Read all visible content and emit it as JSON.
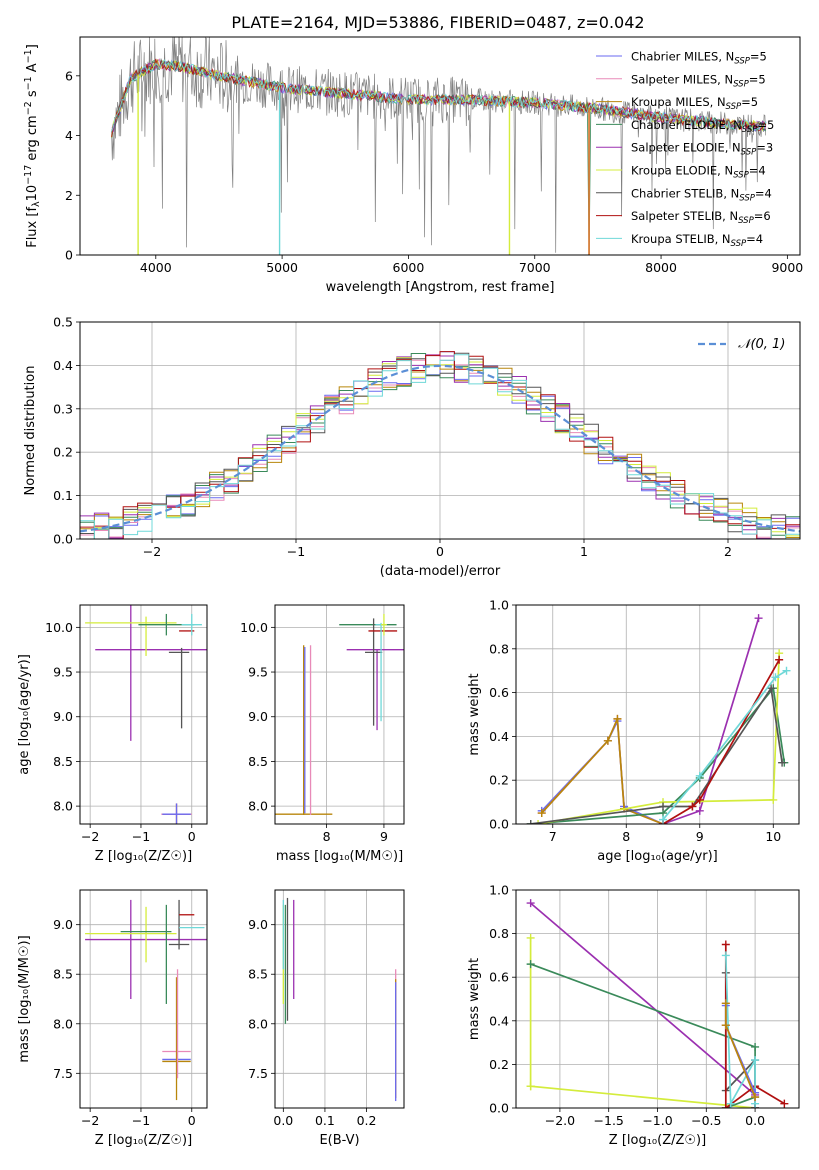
{
  "figure": {
    "title": "PLATE=2164, MJD=53886, FIBERID=0487, z=0.042"
  },
  "series": [
    {
      "name": "Chabrier MILES",
      "nssp": "5",
      "color": "#6a6af0"
    },
    {
      "name": "Salpeter MILES",
      "nssp": "5",
      "color": "#e88ab8"
    },
    {
      "name": "Kroupa MILES",
      "nssp": "5",
      "color": "#b8860b"
    },
    {
      "name": "Chabrier ELODIE",
      "nssp": "5",
      "color": "#3a8a5a"
    },
    {
      "name": "Salpeter ELODIE",
      "nssp": "3",
      "color": "#9b30b0"
    },
    {
      "name": "Kroupa ELODIE",
      "nssp": "4",
      "color": "#d4ec3c"
    },
    {
      "name": "Chabrier STELIB",
      "nssp": "4",
      "color": "#555555"
    },
    {
      "name": "Salpeter STELIB",
      "nssp": "6",
      "color": "#b01010"
    },
    {
      "name": "Kroupa STELIB",
      "nssp": "4",
      "color": "#6fd8d8"
    }
  ],
  "legend_ssp_prefix": "N",
  "legend_ssp_sub": "SSP",
  "colors": {
    "data": "#808080",
    "gaussian": "#5b8fd6",
    "orange": "#d97b3a",
    "grid": "#b0b0b0"
  },
  "chart_data": [
    {
      "id": "spectrum",
      "type": "line",
      "xlabel": "wavelength [Angstrom, rest frame]",
      "ylabel_parts": [
        "Flux [f",
        "λ",
        "10",
        "−17",
        " erg cm",
        "−2",
        " s",
        "−1",
        " A",
        "−1",
        "]"
      ],
      "xlim": [
        3400,
        9100
      ],
      "ylim": [
        0,
        7.3
      ],
      "xticks": [
        4000,
        5000,
        6000,
        7000,
        8000,
        9000
      ],
      "yticks": [
        0,
        2,
        4,
        6
      ],
      "continuum": {
        "x": [
          3650,
          3800,
          4000,
          4200,
          4500,
          5000,
          5500,
          6000,
          6500,
          7000,
          7500,
          8000,
          8500,
          8830
        ],
        "y": [
          4.1,
          5.9,
          6.4,
          6.3,
          6.0,
          5.6,
          5.4,
          5.2,
          5.2,
          5.1,
          4.9,
          4.6,
          4.4,
          4.3
        ]
      },
      "model_drops_x": [
        3860,
        4980,
        6800,
        7430
      ],
      "grid": false
    },
    {
      "id": "residuals",
      "type": "histogram",
      "xlabel": "(data-model)/error",
      "ylabel": "Normed distribution",
      "xlim": [
        -2.5,
        2.5
      ],
      "ylim": [
        0,
        0.5
      ],
      "xticks": [
        -2,
        -1,
        0,
        1,
        2
      ],
      "yticks": [
        0.0,
        0.1,
        0.2,
        0.3,
        0.4,
        0.5
      ],
      "bin_width": 0.1,
      "reference_label": "𝒩(0, 1)",
      "grid": true
    },
    {
      "id": "age-vs-Z",
      "type": "scatter",
      "xlabel": "Z [log₁₀(Z/Z☉)]",
      "ylabel": "age  [log₁₀(age/yr)]",
      "xlim": [
        -2.2,
        0.3
      ],
      "ylim": [
        7.8,
        10.25
      ],
      "xticks": [
        -2,
        -1,
        0
      ],
      "yticks": [
        8.0,
        8.5,
        9.0,
        9.5,
        10.0
      ],
      "grid": true,
      "points": [
        {
          "s": 2,
          "x": -0.3,
          "y": 7.91,
          "xerr": 0.28,
          "yerr": 0.12
        },
        {
          "s": 1,
          "x": -0.3,
          "y": 7.91,
          "xerr": 0.3,
          "yerr": 0.12
        },
        {
          "s": 0,
          "x": -0.3,
          "y": 7.91,
          "xerr": 0.28,
          "yerr": 0.12
        },
        {
          "s": 4,
          "x": -0.6,
          "y": 9.75,
          "xerr": 1.3,
          "yerr": 0.0
        },
        {
          "s": 4,
          "x": -1.2,
          "y": 9.5,
          "xerr": 0.0,
          "yerr": 0.77
        },
        {
          "s": 5,
          "x": -1.2,
          "y": 10.05,
          "xerr": 0.9,
          "yerr": 0.0
        },
        {
          "s": 5,
          "x": -0.9,
          "y": 9.9,
          "xerr": 0.0,
          "yerr": 0.22
        },
        {
          "s": 3,
          "x": -0.5,
          "y": 10.03,
          "xerr": 0.55,
          "yerr": 0.12
        },
        {
          "s": 6,
          "x": -0.25,
          "y": 9.72,
          "xerr": 0.2,
          "yerr": 0.0
        },
        {
          "s": 6,
          "x": -0.2,
          "y": 9.32,
          "xerr": 0.0,
          "yerr": 0.45
        },
        {
          "s": 7,
          "x": -0.1,
          "y": 9.96,
          "xerr": 0.15,
          "yerr": 0.0
        },
        {
          "s": 8,
          "x": 0.0,
          "y": 10.03,
          "xerr": 0.2,
          "yerr": 0.12
        }
      ]
    },
    {
      "id": "age-vs-mass",
      "type": "scatter",
      "xlabel": "mass [log₁₀(M/M☉)]",
      "ylabel": "",
      "xlim": [
        7.1,
        9.35
      ],
      "ylim": [
        7.8,
        10.25
      ],
      "xticks": [
        8,
        9
      ],
      "yticks": [
        8.0,
        8.5,
        9.0,
        9.5,
        10.0
      ],
      "grid": true,
      "points": [
        {
          "s": 2,
          "x": 7.6,
          "y": 7.91,
          "xerr": 0.5,
          "yerr": 0.0
        },
        {
          "s": 2,
          "x": 7.6,
          "y": 8.85,
          "xerr": 0.0,
          "yerr": 0.95
        },
        {
          "s": 1,
          "x": 7.72,
          "y": 8.85,
          "xerr": 0.0,
          "yerr": 0.95
        },
        {
          "s": 0,
          "x": 7.62,
          "y": 8.85,
          "xerr": 0.0,
          "yerr": 0.93
        },
        {
          "s": 4,
          "x": 8.85,
          "y": 9.75,
          "xerr": 0.5,
          "yerr": 0.0
        },
        {
          "s": 4,
          "x": 8.88,
          "y": 9.3,
          "xerr": 0.0,
          "yerr": 0.45
        },
        {
          "s": 3,
          "x": 8.72,
          "y": 10.03,
          "xerr": 0.5,
          "yerr": 0.0
        },
        {
          "s": 6,
          "x": 8.82,
          "y": 9.72,
          "xerr": 0.15,
          "yerr": 0.0
        },
        {
          "s": 6,
          "x": 8.82,
          "y": 9.5,
          "xerr": 0.0,
          "yerr": 0.6
        },
        {
          "s": 7,
          "x": 8.98,
          "y": 9.96,
          "xerr": 0.25,
          "yerr": 0.0
        },
        {
          "s": 8,
          "x": 8.95,
          "y": 10.03,
          "xerr": 0.1,
          "yerr": 0.0
        },
        {
          "s": 8,
          "x": 8.95,
          "y": 9.5,
          "xerr": 0.0,
          "yerr": 0.55
        },
        {
          "s": 5,
          "x": 9.0,
          "y": 10.03,
          "xerr": 0.05,
          "yerr": 0.12
        }
      ]
    },
    {
      "id": "weight-vs-age",
      "type": "line",
      "xlabel": "age  [log₁₀(age/yr)]",
      "ylabel": "mass weight",
      "xlim": [
        6.5,
        10.35
      ],
      "ylim": [
        0,
        1.0
      ],
      "xticks": [
        7,
        8,
        9,
        10
      ],
      "yticks": [
        0.0,
        0.2,
        0.4,
        0.6,
        0.8,
        1.0
      ],
      "grid": true,
      "series": [
        {
          "s": 0,
          "x": [
            6.85,
            7.75,
            7.88,
            7.97,
            8.5
          ],
          "y": [
            0.06,
            0.38,
            0.47,
            0.08,
            0.0
          ]
        },
        {
          "s": 1,
          "x": [
            6.85,
            7.75,
            7.88,
            7.97,
            8.5
          ],
          "y": [
            0.05,
            0.38,
            0.48,
            0.07,
            0.0
          ]
        },
        {
          "s": 2,
          "x": [
            6.85,
            7.75,
            7.88,
            7.97,
            8.5
          ],
          "y": [
            0.05,
            0.38,
            0.48,
            0.07,
            0.0
          ]
        },
        {
          "s": 3,
          "x": [
            6.7,
            8.5,
            9.0,
            10.0,
            10.15
          ],
          "y": [
            0.0,
            0.05,
            0.21,
            0.62,
            0.28
          ]
        },
        {
          "s": 4,
          "x": [
            8.5,
            9.0,
            9.8
          ],
          "y": [
            0.0,
            0.06,
            0.94
          ]
        },
        {
          "s": 5,
          "x": [
            6.8,
            8.5,
            10.0,
            10.08
          ],
          "y": [
            0.0,
            0.1,
            0.11,
            0.78
          ]
        },
        {
          "s": 6,
          "x": [
            6.7,
            8.5,
            8.9,
            9.97,
            10.12
          ],
          "y": [
            0.0,
            0.08,
            0.08,
            0.62,
            0.28
          ]
        },
        {
          "s": 7,
          "x": [
            8.5,
            8.9,
            9.0,
            10.08
          ],
          "y": [
            0.0,
            0.08,
            0.11,
            0.75
          ]
        },
        {
          "s": 8,
          "x": [
            8.5,
            9.0,
            10.03,
            10.18
          ],
          "y": [
            0.02,
            0.22,
            0.67,
            0.7
          ]
        }
      ]
    },
    {
      "id": "mass-vs-Z",
      "type": "scatter",
      "xlabel": "Z [log₁₀(Z/Z☉)]",
      "ylabel": "mass [log₁₀(M/M☉)]",
      "xlim": [
        -2.2,
        0.3
      ],
      "ylim": [
        7.15,
        9.35
      ],
      "xticks": [
        -2,
        -1,
        0
      ],
      "yticks": [
        7.5,
        8.0,
        8.5,
        9.0
      ],
      "grid": true,
      "points": [
        {
          "s": 4,
          "x": -0.9,
          "y": 8.85,
          "xerr": 1.2,
          "yerr": 0.0
        },
        {
          "s": 4,
          "x": -1.2,
          "y": 8.75,
          "xerr": 0.0,
          "yerr": 0.5
        },
        {
          "s": 5,
          "x": -1.2,
          "y": 8.91,
          "xerr": 0.9,
          "yerr": 0.0
        },
        {
          "s": 5,
          "x": -0.9,
          "y": 8.9,
          "xerr": 0.0,
          "yerr": 0.28
        },
        {
          "s": 3,
          "x": -0.9,
          "y": 8.93,
          "xerr": 0.5,
          "yerr": 0.0
        },
        {
          "s": 3,
          "x": -0.5,
          "y": 8.7,
          "xerr": 0.0,
          "yerr": 0.5
        },
        {
          "s": 6,
          "x": -0.25,
          "y": 8.8,
          "xerr": 0.2,
          "yerr": 0.0
        },
        {
          "s": 6,
          "x": -0.25,
          "y": 9.0,
          "xerr": 0.0,
          "yerr": 0.25
        },
        {
          "s": 7,
          "x": -0.1,
          "y": 9.1,
          "xerr": 0.15,
          "yerr": 0.0
        },
        {
          "s": 8,
          "x": 0.0,
          "y": 8.97,
          "xerr": 0.25,
          "yerr": 0.0
        },
        {
          "s": 1,
          "x": -0.3,
          "y": 7.72,
          "xerr": 0.28,
          "yerr": 0.0
        },
        {
          "s": 0,
          "x": -0.3,
          "y": 7.64,
          "xerr": 0.28,
          "yerr": 0.0
        },
        {
          "s": 2,
          "x": -0.3,
          "y": 7.62,
          "xerr": 0.28,
          "yerr": 0.0
        },
        {
          "s": 2,
          "x": -0.3,
          "y": 7.85,
          "xerr": 0.0,
          "yerr": 0.62
        },
        {
          "s": 1,
          "x": -0.28,
          "y": 8.0,
          "xerr": 0.0,
          "yerr": 0.55
        }
      ]
    },
    {
      "id": "mass-vs-EBV",
      "type": "scatter",
      "xlabel": "E(B-V)",
      "ylabel": "",
      "xlim": [
        -0.02,
        0.29
      ],
      "ylim": [
        7.15,
        9.35
      ],
      "xticks": [
        0.0,
        0.1,
        0.2
      ],
      "yticks": [
        7.5,
        8.0,
        8.5,
        9.0
      ],
      "grid": true,
      "points": [
        {
          "s": 5,
          "x": 0.0,
          "y": 8.7,
          "xerr": 0.0,
          "yerr": 0.5
        },
        {
          "s": 3,
          "x": 0.005,
          "y": 8.6,
          "xerr": 0.0,
          "yerr": 0.6
        },
        {
          "s": 6,
          "x": 0.01,
          "y": 8.65,
          "xerr": 0.0,
          "yerr": 0.62
        },
        {
          "s": 4,
          "x": 0.025,
          "y": 8.75,
          "xerr": 0.0,
          "yerr": 0.5
        },
        {
          "s": 8,
          "x": 0.0,
          "y": 8.9,
          "xerr": 0.0,
          "yerr": 0.35
        },
        {
          "s": 1,
          "x": 0.27,
          "y": 7.9,
          "xerr": 0.0,
          "yerr": 0.65
        },
        {
          "s": 2,
          "x": 0.27,
          "y": 7.85,
          "xerr": 0.0,
          "yerr": 0.6
        },
        {
          "s": 0,
          "x": 0.27,
          "y": 7.82,
          "xerr": 0.0,
          "yerr": 0.6
        }
      ]
    },
    {
      "id": "weight-vs-Z",
      "type": "line",
      "xlabel": "Z [log₁₀(Z/Z☉)]",
      "ylabel": "mass weight",
      "xlim": [
        -2.45,
        0.45
      ],
      "ylim": [
        0,
        1.0
      ],
      "xticks": [
        -2.0,
        -1.5,
        -1.0,
        -0.5,
        0.0
      ],
      "yticks": [
        0.0,
        0.2,
        0.4,
        0.6,
        0.8,
        1.0
      ],
      "grid": true,
      "series": [
        {
          "s": 5,
          "x": [
            -2.3,
            -2.3,
            -2.3,
            0.0
          ],
          "y": [
            0.78,
            0.1,
            0.1,
            0.0
          ]
        },
        {
          "s": 4,
          "x": [
            -2.3,
            0.0,
            0.0
          ],
          "y": [
            0.94,
            0.06,
            0.0
          ]
        },
        {
          "s": 3,
          "x": [
            -2.3,
            0.0,
            0.0,
            -0.3
          ],
          "y": [
            0.66,
            0.28,
            0.05,
            0.0
          ]
        },
        {
          "s": 6,
          "x": [
            -0.3,
            -0.3,
            0.0,
            0.0
          ],
          "y": [
            0.62,
            0.08,
            0.22,
            0.0
          ]
        },
        {
          "s": 7,
          "x": [
            -0.3,
            -0.3,
            0.0,
            0.3
          ],
          "y": [
            0.75,
            0.0,
            0.1,
            0.02
          ]
        },
        {
          "s": 8,
          "x": [
            -0.3,
            -0.25,
            0.0,
            0.0
          ],
          "y": [
            0.7,
            0.02,
            0.22,
            0.02
          ]
        },
        {
          "s": 0,
          "x": [
            -0.3,
            -0.3,
            0.0
          ],
          "y": [
            0.47,
            0.38,
            0.07
          ]
        },
        {
          "s": 1,
          "x": [
            -0.3,
            -0.3,
            0.0
          ],
          "y": [
            0.48,
            0.38,
            0.05
          ]
        },
        {
          "s": 2,
          "x": [
            -0.3,
            -0.3,
            0.0
          ],
          "y": [
            0.48,
            0.38,
            0.05
          ]
        }
      ]
    }
  ]
}
